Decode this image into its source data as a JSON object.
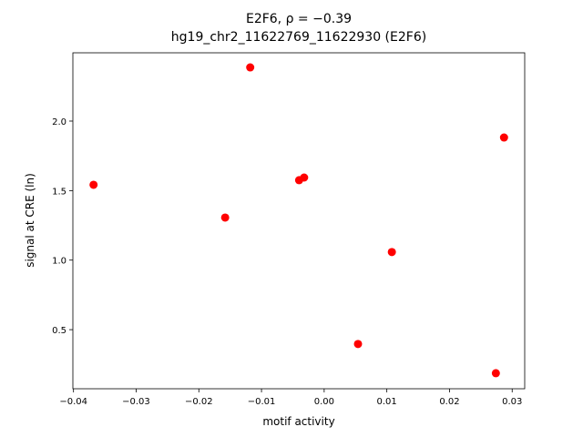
{
  "chart_data": {
    "type": "scatter",
    "title": "E2F6, ρ = −0.39",
    "subtitle": "hg19_chr2_11622769_11622930 (E2F6)",
    "x_label": "motif activity",
    "y_label": "signal at CRE (ln)",
    "color": "#ff0000",
    "x": [
      -0.0368,
      -0.0118,
      -0.0158,
      -0.004,
      -0.0032,
      0.0054,
      0.0108,
      0.0274,
      0.0287
    ],
    "values": [
      1.542,
      2.386,
      1.306,
      1.575,
      1.594,
      0.397,
      1.058,
      0.187,
      1.882
    ],
    "xlim": [
      -0.0401,
      0.032
    ],
    "ylim": [
      0.075,
      2.491
    ],
    "xticks": [
      {
        "value": -0.04,
        "label": "−0.04"
      },
      {
        "value": -0.03,
        "label": "−0.03"
      },
      {
        "value": -0.02,
        "label": "−0.02"
      },
      {
        "value": -0.01,
        "label": "−0.01"
      },
      {
        "value": 0,
        "label": "0.00"
      },
      {
        "value": 0.01,
        "label": "0.01"
      },
      {
        "value": 0.02,
        "label": "0.02"
      },
      {
        "value": 0.03,
        "label": "0.03"
      }
    ],
    "yticks": [
      {
        "value": 0.5,
        "label": "0.5"
      },
      {
        "value": 1,
        "label": "1.0"
      },
      {
        "value": 1.5,
        "label": "1.5"
      },
      {
        "value": 2,
        "label": "2.0"
      }
    ],
    "grid": false
  }
}
